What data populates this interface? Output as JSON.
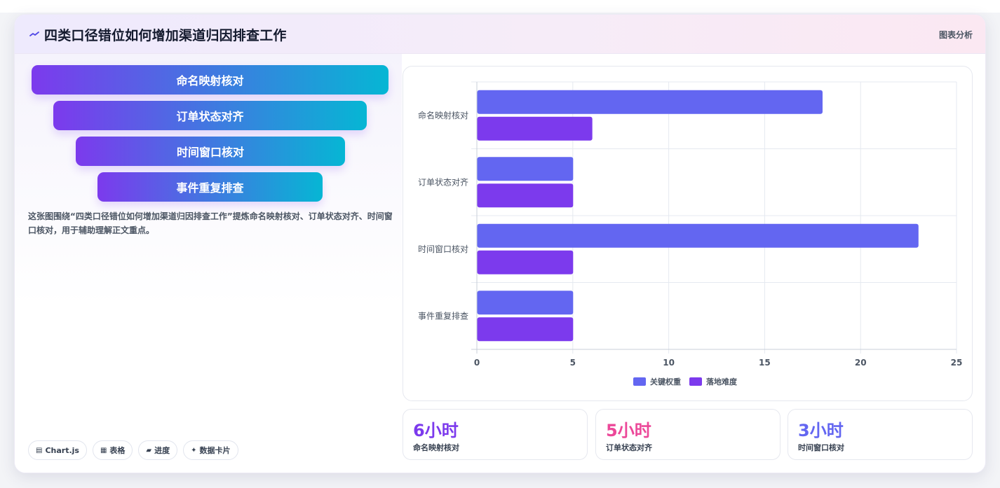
{
  "header": {
    "title": "四类口径错位如何增加渠道归因排查工作",
    "tag": "图表分析"
  },
  "funnel": {
    "items": [
      "命名映射核对",
      "订单状态对齐",
      "时间窗口核对",
      "事件重复排查"
    ]
  },
  "description": "这张图围绕“四类口径错位如何增加渠道归因排查工作”提炼命名映射核对、订单状态对齐、时间窗口核对，用于辅助理解正文重点。",
  "tech_tags": [
    {
      "icon": "chart-icon",
      "glyph": "▤",
      "label": "Chart.js"
    },
    {
      "icon": "table-icon",
      "glyph": "▦",
      "label": "表格"
    },
    {
      "icon": "progress-icon",
      "glyph": "▰",
      "label": "进度"
    },
    {
      "icon": "sparkle-icon",
      "glyph": "✦",
      "label": "数据卡片"
    }
  ],
  "chart_data": {
    "type": "bar",
    "orientation": "horizontal",
    "categories": [
      "命名映射核对",
      "订单状态对齐",
      "时间窗口核对",
      "事件重复排查"
    ],
    "series": [
      {
        "name": "关键权重",
        "values": [
          18,
          5,
          23,
          5
        ],
        "color": "#6366f1"
      },
      {
        "name": "落地难度",
        "values": [
          6,
          5,
          5,
          5
        ],
        "color": "#7c3aed"
      }
    ],
    "xlim": [
      0,
      25
    ],
    "xticks": [
      "0",
      "5",
      "10",
      "15",
      "20",
      "25"
    ],
    "grid": true,
    "legend": "bottom"
  },
  "stats": [
    {
      "value": "6小时",
      "label": "命名映射核对",
      "color": "#7c3aed"
    },
    {
      "value": "5小时",
      "label": "订单状态对齐",
      "color": "#ec4899"
    },
    {
      "value": "3小时",
      "label": "时间窗口核对",
      "color": "#6366f1"
    }
  ]
}
